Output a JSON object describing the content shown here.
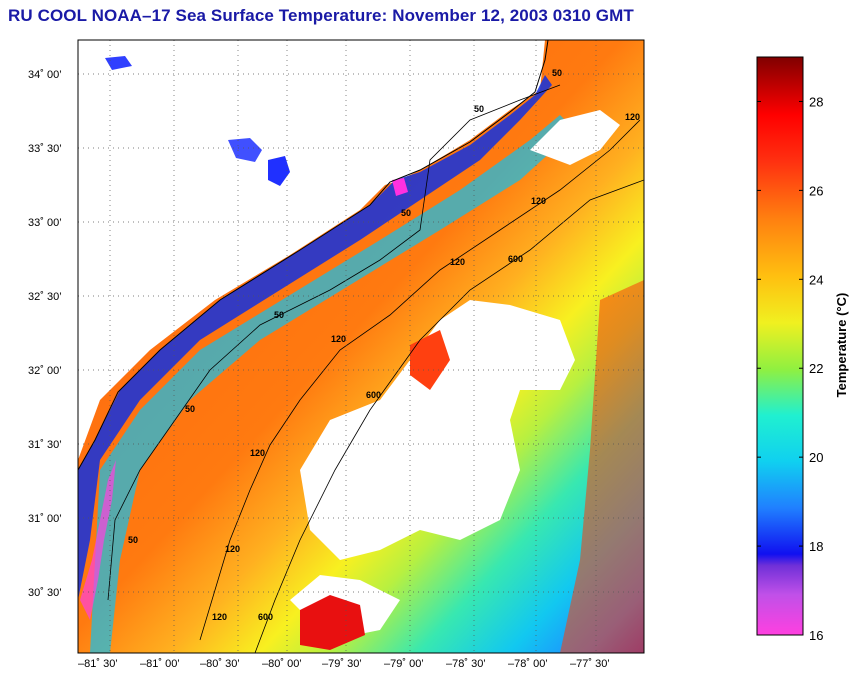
{
  "title": "RU COOL  NOAA–17  Sea Surface Temperature:  November 12, 2003 0310 GMT",
  "map": {
    "lat_labels": [
      "34˚ 00’",
      "33˚ 30’",
      "33˚ 00’",
      "32˚ 30’",
      "32˚ 00’",
      "31˚ 30’",
      "31˚ 00’",
      "30˚ 30’"
    ],
    "lon_labels": [
      "–81˚ 30’",
      "–81˚ 00’",
      "–80˚ 30’",
      "–80˚ 00’",
      "–79˚ 30’",
      "–79˚ 00’",
      "–78˚ 30’",
      "–78˚ 00’",
      "–77˚ 30’"
    ],
    "contour_labels": [
      "50",
      "50",
      "50",
      "50",
      "50",
      "50",
      "120",
      "120",
      "120",
      "120",
      "120",
      "120",
      "600",
      "600",
      "600",
      "120"
    ]
  },
  "colorbar": {
    "title": "Temperature (°C)",
    "min": 16,
    "max": 29,
    "tick_labels": [
      "28",
      "26",
      "24",
      "22",
      "20",
      "18",
      "16"
    ],
    "tick_values": [
      28,
      26,
      24,
      22,
      20,
      18,
      16
    ]
  }
}
